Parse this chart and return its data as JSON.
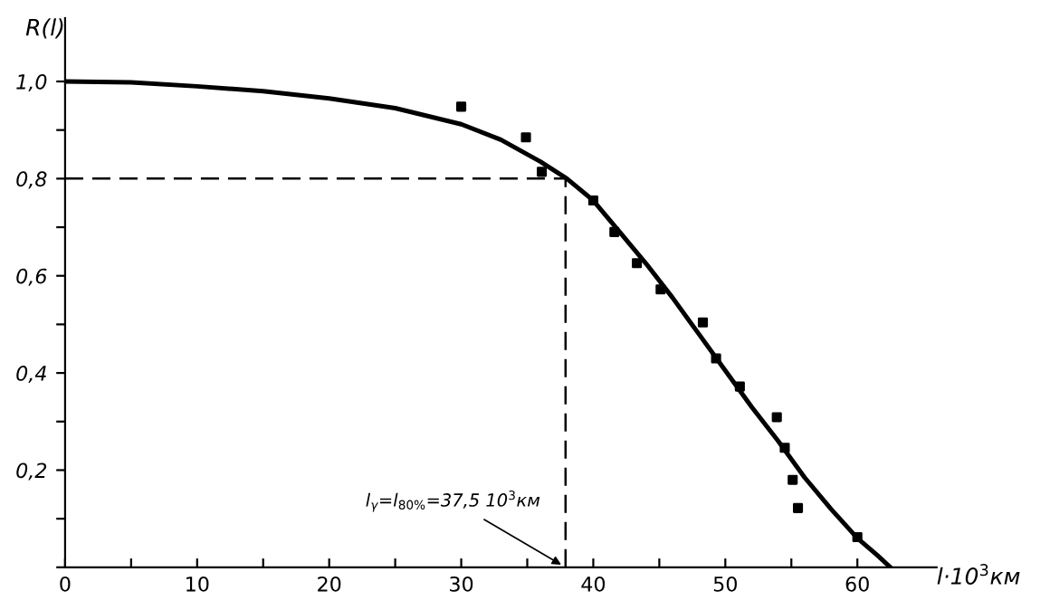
{
  "chart_data": {
    "type": "scatter",
    "xlabel": "l·10$^{3}$км",
    "ylabel": "R(l)",
    "xlim": [
      0,
      66
    ],
    "ylim": [
      0,
      1.13
    ],
    "xticks": [
      {
        "value": 0,
        "label": "0"
      },
      {
        "value": 5,
        "label": null
      },
      10,
      {
        "value": 15,
        "label": null
      },
      20,
      {
        "value": 25,
        "label": null
      },
      30,
      {
        "value": 35,
        "label": null
      },
      40,
      {
        "value": 45,
        "label": null
      },
      50,
      {
        "value": 55,
        "label": null
      },
      60
    ],
    "yticks": [
      {
        "value": 0,
        "label": null
      },
      {
        "value": 0.1,
        "label": null
      },
      {
        "value": 0.2,
        "label": "0,2"
      },
      {
        "value": 0.3,
        "label": null
      },
      {
        "value": 0.4,
        "label": "0,4"
      },
      {
        "value": 0.5,
        "label": null
      },
      {
        "value": 0.6,
        "label": "0,6"
      },
      {
        "value": 0.7,
        "label": null
      },
      {
        "value": 0.8,
        "label": "0,8"
      },
      {
        "value": 0.9,
        "label": null
      },
      {
        "value": 1.0,
        "label": "1,0"
      }
    ],
    "grid": false,
    "series": [
      {
        "color": "#000000",
        "marker": "square",
        "x": [
          30,
          34.9,
          36.1,
          40.0,
          41.6,
          43.3,
          45.1,
          48.3,
          49.3,
          51.1,
          53.9,
          54.5,
          55.1,
          55.5,
          60.0
        ],
        "values": [
          0.948,
          0.885,
          0.814,
          0.755,
          0.69,
          0.626,
          0.572,
          0.504,
          0.43,
          0.372,
          0.309,
          0.246,
          0.18,
          0.122,
          0.062
        ]
      },
      {
        "type": "line",
        "color": "#000000",
        "marker": "none",
        "line_style": "solid",
        "x": [
          0,
          5,
          10,
          15,
          20,
          25,
          30,
          33,
          36,
          38,
          40,
          42,
          44,
          46,
          48,
          50,
          52,
          54,
          56,
          58,
          60,
          61.5,
          62.5
        ],
        "values": [
          1.0,
          0.998,
          0.99,
          0.98,
          0.965,
          0.945,
          0.912,
          0.88,
          0.835,
          0.8,
          0.755,
          0.69,
          0.625,
          0.555,
          0.48,
          0.405,
          0.33,
          0.26,
          0.185,
          0.12,
          0.06,
          0.025,
          0.0
        ]
      }
    ],
    "ref_lines": [
      {
        "axis": "y",
        "value": 0.8,
        "color": "#000000",
        "line_style": "dashed"
      },
      {
        "axis": "x",
        "value": 37.9,
        "color": "#000000",
        "line_style": "dashed"
      }
    ],
    "annotations": [
      {
        "text": "l$_{γ}$=l$_{80%}$=37,5 10$^{3}$км",
        "x": 37.9,
        "y": 0
      }
    ]
  }
}
